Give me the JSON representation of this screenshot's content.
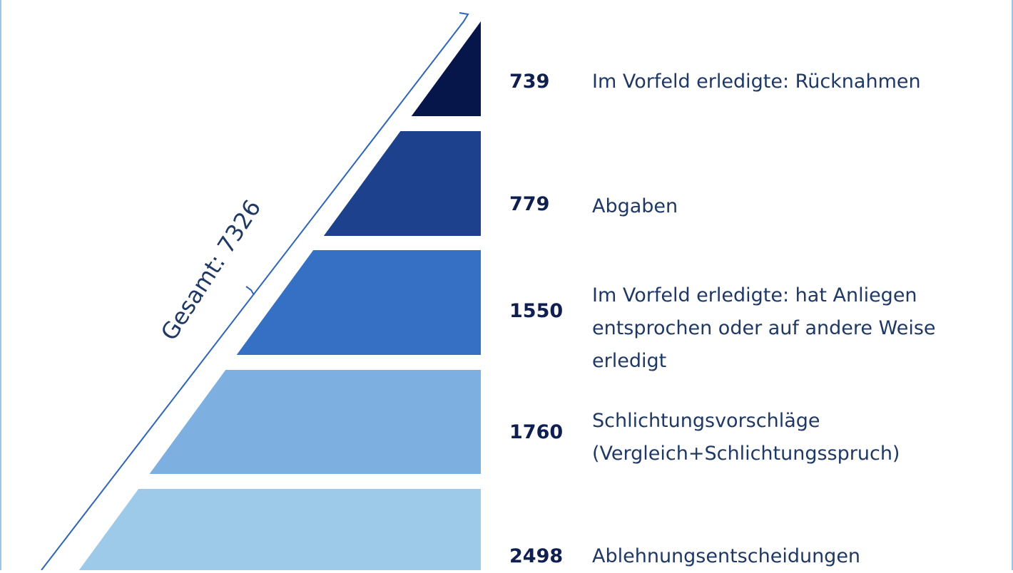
{
  "chart_data": {
    "type": "bar",
    "total_label": "Gesamt: 7326",
    "levels": [
      {
        "value": "739",
        "label": "Im Vorfeld erledigte: Rücknahmen",
        "color": "#06154a"
      },
      {
        "value": "779",
        "label": "Abgaben",
        "color": "#1e418e"
      },
      {
        "value": "1550",
        "label": "Im Vorfeld erledigte: hat Anliegen entsprochen oder auf andere Weise erledigt",
        "color": "#3670c4"
      },
      {
        "value": "1760",
        "label": "Schlichtungsvorschläge (Vergleich+Schlichtungsspruch)",
        "color": "#7dafe0"
      },
      {
        "value": "2498",
        "label": "Ablehnungsentscheidungen",
        "color": "#9dcae9"
      }
    ]
  }
}
